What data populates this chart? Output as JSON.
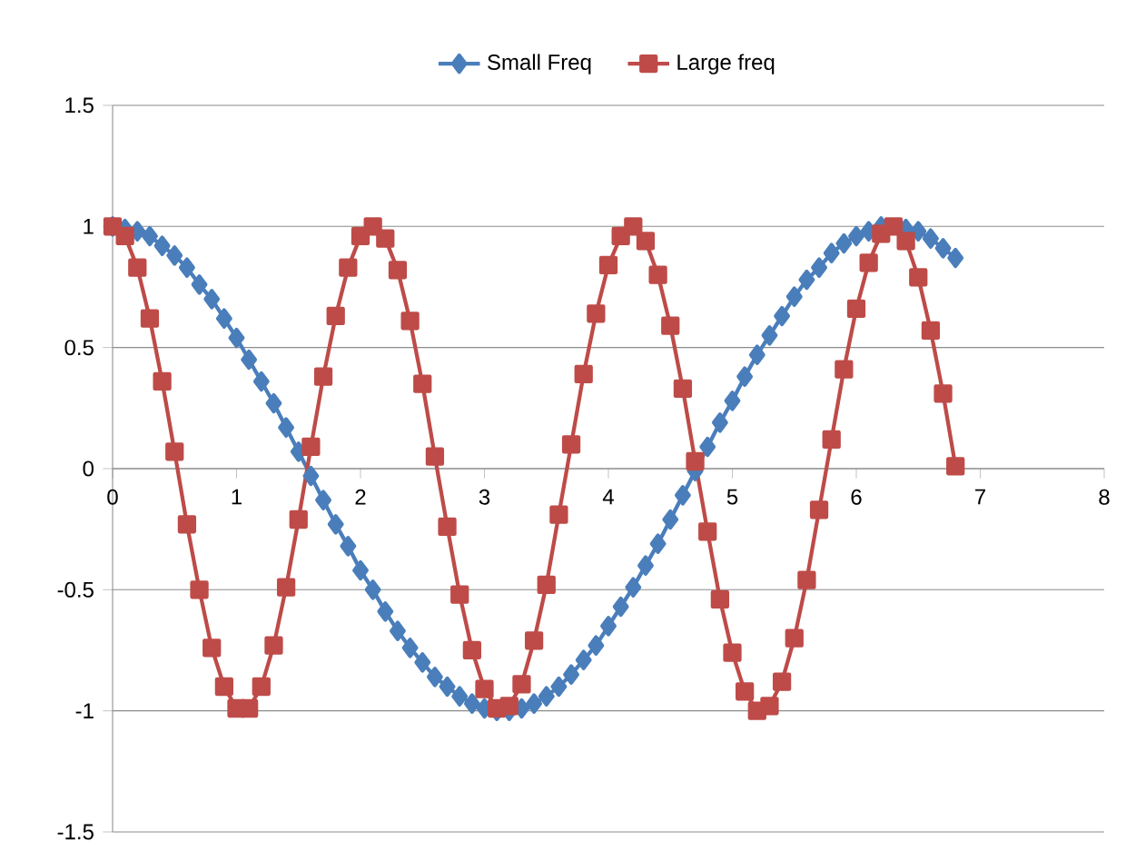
{
  "chart_data": {
    "type": "line",
    "x": [
      0,
      0.1,
      0.2,
      0.3,
      0.4,
      0.5,
      0.6,
      0.7,
      0.8,
      0.9,
      1.0,
      1.1,
      1.2,
      1.3,
      1.4,
      1.5,
      1.6,
      1.7,
      1.8,
      1.9,
      2.0,
      2.1,
      2.2,
      2.3,
      2.4,
      2.5,
      2.6,
      2.7,
      2.8,
      2.9,
      3.0,
      3.1,
      3.2,
      3.3,
      3.4,
      3.5,
      3.6,
      3.7,
      3.8,
      3.9,
      4.0,
      4.1,
      4.2,
      4.3,
      4.4,
      4.5,
      4.6,
      4.7,
      4.8,
      4.9,
      5.0,
      5.1,
      5.2,
      5.3,
      5.4,
      5.5,
      5.6,
      5.7,
      5.8,
      5.9,
      6.0,
      6.1,
      6.2,
      6.3,
      6.4,
      6.5,
      6.6,
      6.7,
      6.8
    ],
    "series": [
      {
        "name": "Small Freq",
        "color": "#4a7ebb",
        "marker": "diamond",
        "values": [
          1.0,
          0.99,
          0.98,
          0.96,
          0.92,
          0.88,
          0.83,
          0.76,
          0.7,
          0.62,
          0.54,
          0.45,
          0.36,
          0.27,
          0.17,
          0.07,
          -0.03,
          -0.13,
          -0.23,
          -0.32,
          -0.42,
          -0.5,
          -0.59,
          -0.67,
          -0.74,
          -0.8,
          -0.86,
          -0.9,
          -0.94,
          -0.97,
          -0.99,
          -1.0,
          -1.0,
          -0.99,
          -0.97,
          -0.94,
          -0.9,
          -0.85,
          -0.79,
          -0.73,
          -0.65,
          -0.57,
          -0.49,
          -0.4,
          -0.31,
          -0.21,
          -0.11,
          -0.01,
          0.09,
          0.19,
          0.28,
          0.38,
          0.47,
          0.55,
          0.63,
          0.71,
          0.78,
          0.83,
          0.89,
          0.93,
          0.96,
          0.98,
          1.0,
          null,
          0.99,
          0.98,
          0.95,
          0.91,
          0.87
        ]
      },
      {
        "name": "Large freq",
        "color": "#be4b48",
        "marker": "square",
        "values": [
          1.0,
          0.96,
          0.83,
          0.62,
          0.36,
          0.07,
          -0.23,
          -0.5,
          -0.74,
          -0.9,
          -0.99,
          -0.99,
          -0.9,
          -0.73,
          -0.49,
          -0.21,
          0.09,
          0.38,
          0.63,
          0.83,
          0.96,
          1.0,
          0.95,
          0.82,
          0.61,
          0.35,
          0.05,
          -0.24,
          -0.52,
          -0.75,
          -0.91,
          -0.99,
          -0.98,
          -0.89,
          -0.71,
          -0.48,
          -0.19,
          0.1,
          0.39,
          0.64,
          0.84,
          0.96,
          1.0,
          0.94,
          0.8,
          0.59,
          0.33,
          0.03,
          -0.26,
          -0.54,
          -0.76,
          -0.92,
          -1.0,
          -0.98,
          -0.88,
          -0.7,
          -0.46,
          -0.17,
          0.12,
          0.41,
          0.66,
          0.85,
          0.97,
          1.0,
          0.94,
          0.79,
          0.57,
          0.31,
          0.01
        ]
      }
    ],
    "xlim": [
      0,
      8
    ],
    "xticks": [
      0,
      1,
      2,
      3,
      4,
      5,
      6,
      7,
      8
    ],
    "ylim": [
      -1.5,
      1.5
    ],
    "yticks": [
      -1.5,
      -1,
      -0.5,
      0,
      0.5,
      1,
      1.5
    ],
    "grid": "y",
    "legend": "top",
    "line_style": "solid"
  }
}
